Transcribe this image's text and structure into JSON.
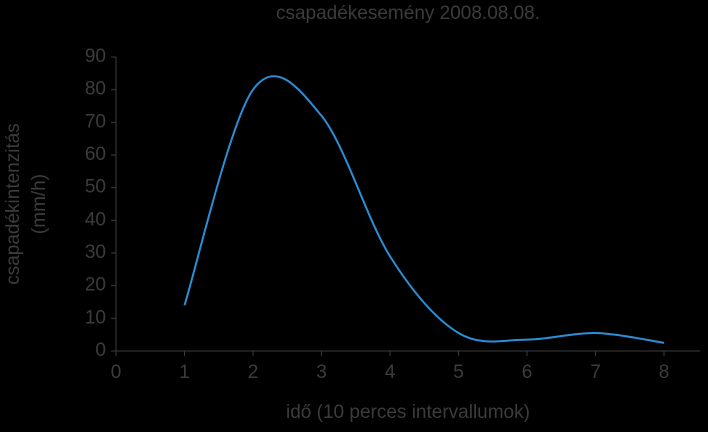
{
  "chart_data": {
    "type": "line",
    "title": "csapadékesemény 2008.08.08.",
    "x_label": "idő (10 perces intervallumok)",
    "y_label": [
      "csapadékintenzitás",
      "(mm/h)"
    ],
    "x": [
      1,
      2,
      3,
      4,
      5,
      6,
      7,
      8
    ],
    "series": [
      {
        "color": "#2b8fd8",
        "values": [
          14,
          80,
          72,
          29,
          5.5,
          3.5,
          5.5,
          2.5
        ]
      }
    ],
    "xlim": [
      0,
      8
    ],
    "xticks": [
      0,
      1,
      2,
      3,
      4,
      5,
      6,
      7,
      8
    ],
    "ylim": [
      0,
      90
    ],
    "yticks": [
      0,
      10,
      20,
      30,
      40,
      50,
      60,
      70,
      80,
      90
    ],
    "smooth": true
  }
}
